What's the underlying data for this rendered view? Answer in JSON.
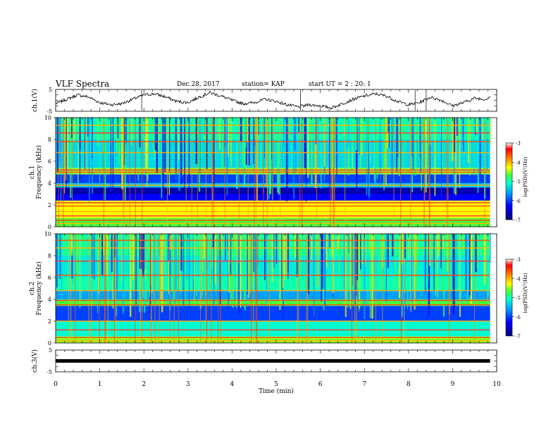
{
  "header": {
    "title": "VLF Spectra",
    "date": "Dec.28, 2017",
    "station": "station= KAP",
    "start_ut": "start UT =  2 : 20: 1"
  },
  "chart_data": [
    {
      "type": "line",
      "panel": "ch1-waveform",
      "ylabel": "ch.1(V)",
      "ylim": [
        -5,
        5
      ],
      "yticks": [
        -5,
        5
      ],
      "xlim": [
        0,
        10
      ],
      "description_source": "noisy oscillating voltage trace",
      "x": [
        0,
        0.25,
        0.5,
        0.75,
        1.0,
        1.25,
        1.5,
        1.75,
        2.0,
        2.25,
        2.5,
        2.75,
        3.0,
        3.25,
        3.5,
        3.75,
        4.0,
        4.25,
        4.5,
        4.75,
        5.0,
        5.25,
        5.5,
        5.75,
        6.0,
        6.25,
        6.5,
        6.75,
        7.0,
        7.25,
        7.5,
        7.75,
        8.0,
        8.25,
        8.5,
        8.75,
        9.0,
        9.25,
        9.5,
        9.75,
        9.85
      ],
      "y": [
        -1.5,
        0.5,
        2.5,
        1.5,
        -1.0,
        -2.0,
        -1.5,
        0.5,
        2.5,
        3.0,
        1.5,
        -0.5,
        -1.0,
        1.5,
        3.5,
        2.0,
        0.0,
        -1.5,
        -1.0,
        0.5,
        -0.5,
        -2.0,
        -3.0,
        -2.0,
        -2.5,
        -3.5,
        -1.5,
        0.5,
        2.0,
        3.0,
        2.0,
        -0.5,
        -2.0,
        -1.0,
        1.5,
        0.0,
        -2.5,
        -1.0,
        1.0,
        0.5,
        2.0
      ]
    },
    {
      "type": "heatmap",
      "panel": "ch1-spectrogram",
      "ylabel": "ch.1 Frequency (kHz)",
      "ylim": [
        0,
        10
      ],
      "yticks": [
        0,
        2,
        4,
        6,
        8,
        10
      ],
      "xlim": [
        0,
        10
      ],
      "colorbar": {
        "label": "log(PSD)(V²/Hz)",
        "range": [
          -7,
          -3
        ],
        "ticks": [
          -3,
          -4,
          -5,
          -6,
          -7
        ]
      },
      "bands": [
        {
          "from": 0,
          "to": 0.8,
          "level": -5.0
        },
        {
          "from": 0.8,
          "to": 2.4,
          "level": -4.5
        },
        {
          "from": 2.4,
          "to": 3.0,
          "level": -6.5
        },
        {
          "from": 3.0,
          "to": 3.6,
          "level": -6.8
        },
        {
          "from": 3.6,
          "to": 4.0,
          "level": -5.8
        },
        {
          "from": 4.0,
          "to": 4.8,
          "level": -6.3
        },
        {
          "from": 4.8,
          "to": 5.4,
          "level": -4.8
        },
        {
          "from": 5.4,
          "to": 8.0,
          "level": -5.7
        },
        {
          "from": 8.0,
          "to": 10.0,
          "level": -5.4
        }
      ],
      "lines_khz": [
        0.3,
        0.6,
        1.0,
        1.4,
        1.9,
        2.2,
        3.8,
        5.0,
        5.2,
        6.8,
        7.8,
        8.6,
        9.3
      ]
    },
    {
      "type": "heatmap",
      "panel": "ch2-spectrogram",
      "ylabel": "ch.2 Frequency (kHz)",
      "ylim": [
        0,
        10
      ],
      "yticks": [
        0,
        2,
        4,
        6,
        8,
        10
      ],
      "xlim": [
        0,
        10
      ],
      "colorbar": {
        "label": "log(PSD)(V²/Hz)",
        "range": [
          -7,
          -3
        ],
        "ticks": [
          -3,
          -4,
          -5,
          -6,
          -7
        ]
      },
      "bands": [
        {
          "from": 0,
          "to": 0.6,
          "level": -4.8
        },
        {
          "from": 0.6,
          "to": 2.0,
          "level": -5.5
        },
        {
          "from": 2.0,
          "to": 3.4,
          "level": -6.3
        },
        {
          "from": 3.4,
          "to": 4.0,
          "level": -5.0
        },
        {
          "from": 4.0,
          "to": 4.8,
          "level": -6.0
        },
        {
          "from": 4.8,
          "to": 6.0,
          "level": -5.4
        },
        {
          "from": 6.0,
          "to": 8.0,
          "level": -5.6
        },
        {
          "from": 8.0,
          "to": 10.0,
          "level": -5.3
        }
      ],
      "lines_khz": [
        0.2,
        0.5,
        1.2,
        2.0,
        3.5,
        3.9,
        4.8,
        6.2,
        7.5,
        8.7,
        9.4
      ]
    },
    {
      "type": "line",
      "panel": "ch3-waveform",
      "ylabel": "ch.3(V)",
      "ylim": [
        -5,
        5
      ],
      "yticks": [
        -5,
        5
      ],
      "xlim": [
        0,
        10
      ],
      "x": [
        0,
        9.85
      ],
      "y": [
        0,
        0
      ]
    }
  ],
  "xaxis": {
    "label": "Time  (min)",
    "ticks": [
      "0",
      "1",
      "2",
      "3",
      "4",
      "5",
      "6",
      "7",
      "8",
      "9",
      "10"
    ]
  },
  "colors": {
    "cmap": [
      "#00007a",
      "#0000ff",
      "#00a0ff",
      "#00ffd0",
      "#40ff40",
      "#ffff00",
      "#ff8000",
      "#ff0000",
      "#ffffff"
    ]
  }
}
